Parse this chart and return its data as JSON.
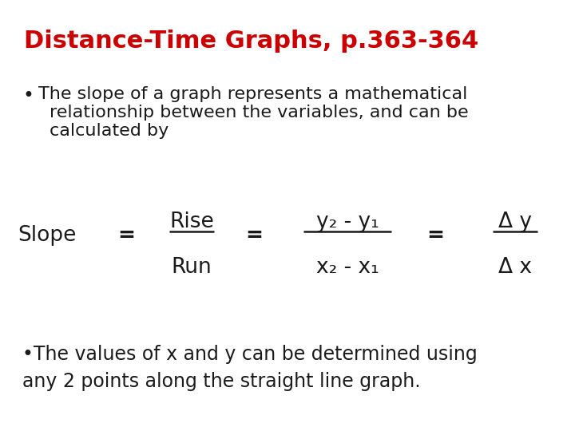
{
  "title": "Distance-Time Graphs, p.363-364",
  "title_color": "#cc0000",
  "title_fontsize": 22,
  "bullet1_line1": "The slope of a graph represents a mathematical",
  "bullet1_line2": "relationship between the variables, and can be",
  "bullet1_line3": "calculated by",
  "bullet2": "•The values of x and y can be determined using\nany 2 points along the straight line graph.",
  "bg_color": "#ffffff",
  "text_color": "#1a1a1a",
  "body_fontsize": 16,
  "formula_fontsize": 19,
  "slope_label": "Slope",
  "rise_label": "Rise",
  "run_label": "Run",
  "num_label": "y₂ - y₁",
  "den_label": "x₂ - x₁",
  "delta_num": "Δ y",
  "delta_den": "Δ x"
}
